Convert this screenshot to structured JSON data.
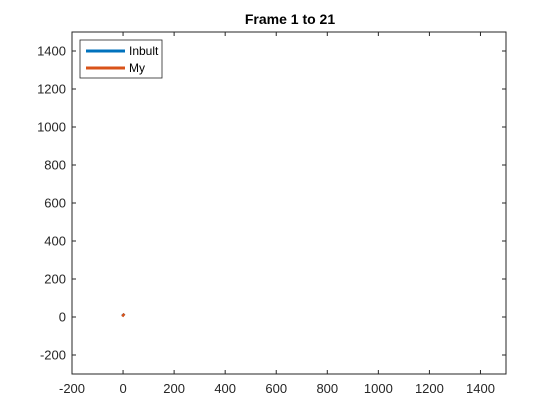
{
  "chart_data": {
    "type": "line",
    "title": "Frame 1 to 21",
    "xlabel": "",
    "ylabel": "",
    "xlim": [
      -200,
      1500
    ],
    "ylim": [
      -300,
      1500
    ],
    "x_ticks": [
      -200,
      0,
      200,
      400,
      600,
      800,
      1000,
      1200,
      1400
    ],
    "y_ticks": [
      -200,
      0,
      200,
      400,
      600,
      800,
      1000,
      1200,
      1400
    ],
    "x_tick_labels": [
      "-200",
      "0",
      "200",
      "400",
      "600",
      "800",
      "1000",
      "1200",
      "1400"
    ],
    "y_tick_labels": [
      "-200",
      "0",
      "200",
      "400",
      "600",
      "800",
      "1000",
      "1200",
      "1400"
    ],
    "grid": false,
    "legend": {
      "placement": "top-left",
      "entries": [
        "Inbult",
        "My"
      ]
    },
    "series": [
      {
        "name": "Inbult",
        "color": "#0072BD",
        "x": [
          0,
          2
        ],
        "y": [
          10,
          12
        ]
      },
      {
        "name": "My",
        "color": "#D95319",
        "x": [
          0,
          2
        ],
        "y": [
          8,
          12
        ]
      }
    ]
  }
}
